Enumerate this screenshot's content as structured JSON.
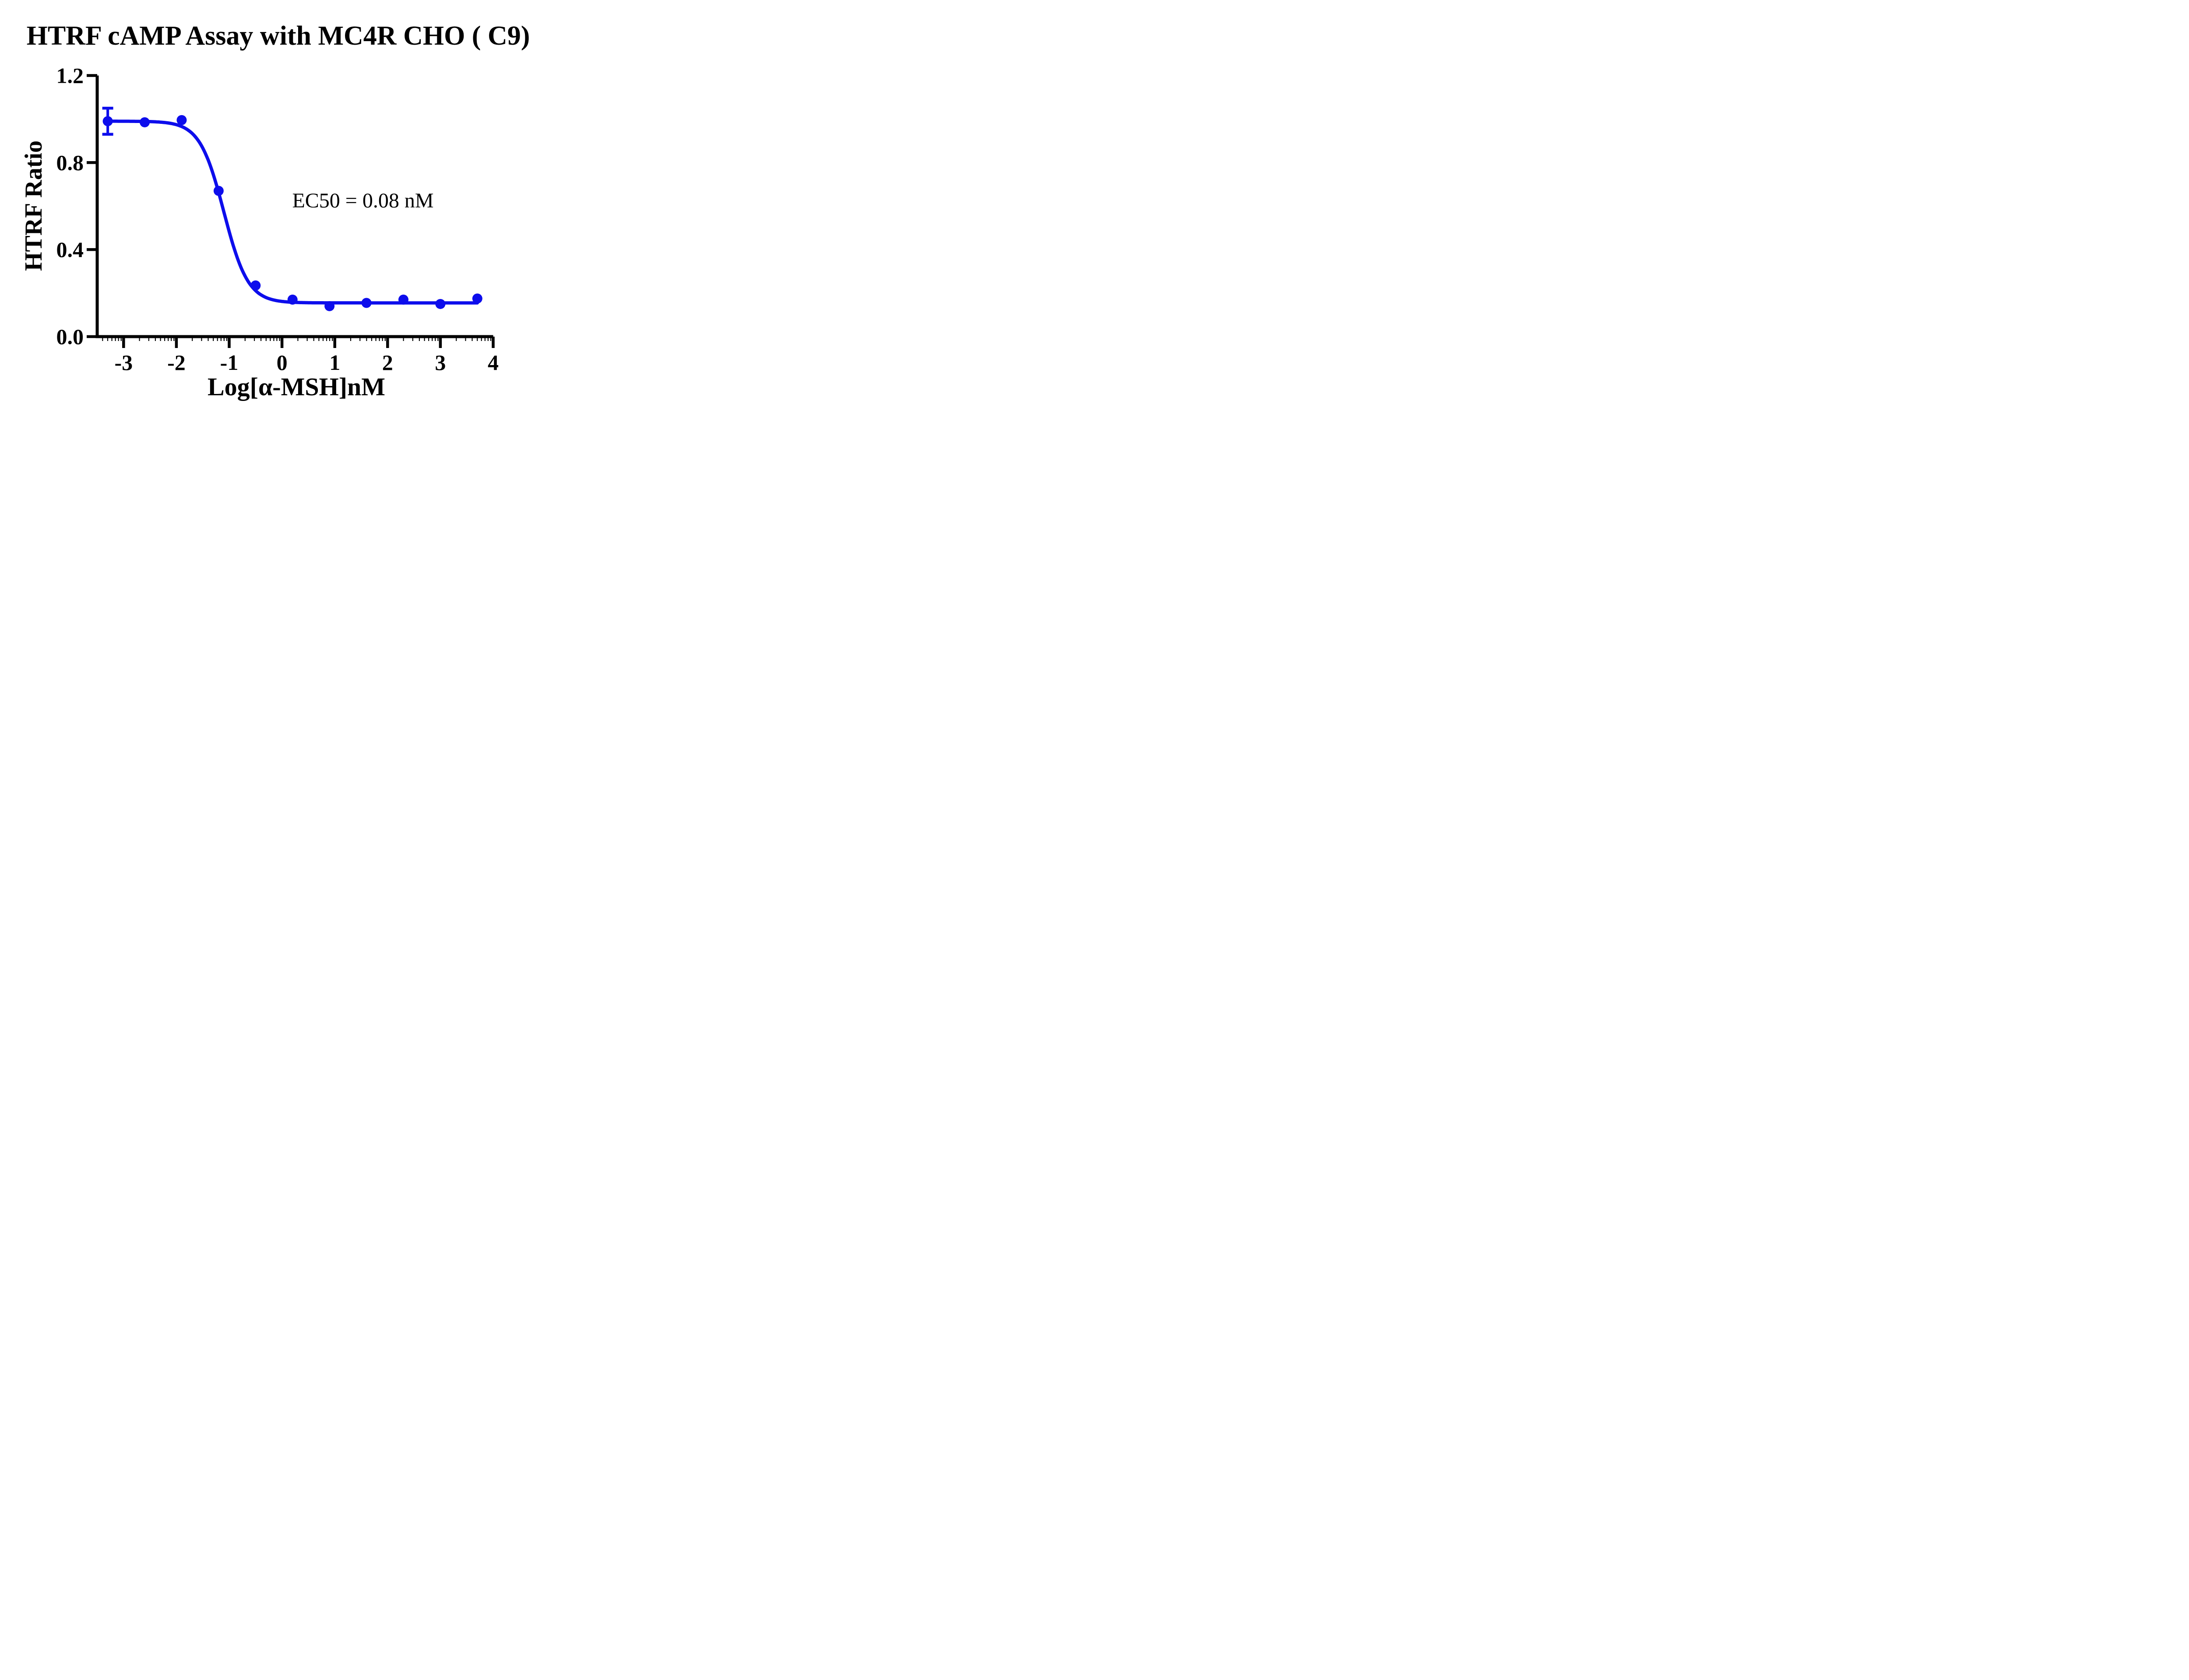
{
  "figure": {
    "background": "#ffffff",
    "text_color": "#000000",
    "curve_color": "#0d0dec"
  },
  "chart_data": {
    "type": "scatter",
    "title": "HTRF cAMP Assay with MC4R CHO ( C9)",
    "xlabel": "Log[α-MSH]nM",
    "ylabel": "HTRF Ratio",
    "annotation": {
      "text": "EC50 = 0.08 nM",
      "x": 1.55,
      "y": 0.62
    },
    "xlim": [
      -3.5,
      4
    ],
    "ylim": [
      0,
      1.2
    ],
    "x_ticks": [
      -3,
      -2,
      -1,
      0,
      1,
      2,
      3,
      4
    ],
    "x_tick_labels": [
      "-3",
      "-2",
      "-1",
      "0",
      "1",
      "2",
      "3",
      "4"
    ],
    "y_ticks": [
      0,
      0.4,
      0.8,
      1.2
    ],
    "y_tick_labels": [
      "0.0",
      "0.4",
      "0.8",
      "1.2"
    ],
    "grid": false,
    "legend": false,
    "series": [
      {
        "name": "α-MSH",
        "color": "#0d0dec",
        "marker": "circle",
        "points": [
          {
            "x": -3.3,
            "y": 0.99,
            "error": 0.06
          },
          {
            "x": -2.6,
            "y": 0.985
          },
          {
            "x": -1.9,
            "y": 0.995
          },
          {
            "x": -1.2,
            "y": 0.67
          },
          {
            "x": -0.5,
            "y": 0.235
          },
          {
            "x": 0.2,
            "y": 0.17
          },
          {
            "x": 0.9,
            "y": 0.14
          },
          {
            "x": 1.6,
            "y": 0.155
          },
          {
            "x": 2.3,
            "y": 0.17
          },
          {
            "x": 3.0,
            "y": 0.15
          },
          {
            "x": 3.7,
            "y": 0.175
          }
        ]
      }
    ],
    "fit_curve": {
      "model": "four-parameter-logistic",
      "top": 0.99,
      "bottom": 0.155,
      "log_ec50": -1.1,
      "hill_slope": 1.9,
      "x_start": -3.3,
      "x_end": 3.7,
      "ec50_nM": 0.08
    }
  }
}
